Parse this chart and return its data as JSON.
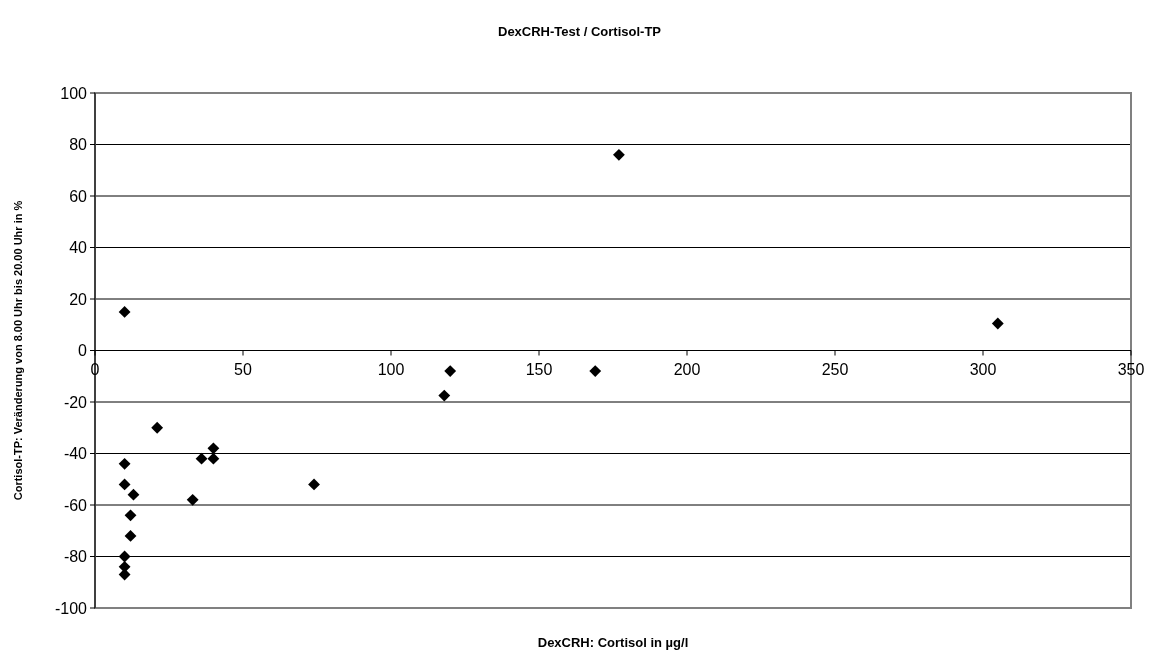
{
  "chart_data": {
    "type": "scatter",
    "title": "DexCRH-Test / Cortisol-TP",
    "xlabel": "DexCRH: Cortisol in µg/l",
    "ylabel": "Cortisol-TP: Veränderung von 8.00 Uhr bis 20.00 Uhr in %",
    "xlim": [
      0,
      350
    ],
    "xticks": [
      0,
      50,
      100,
      150,
      200,
      250,
      300,
      350
    ],
    "ylim": [
      -100,
      100
    ],
    "yticks": [
      -100,
      -80,
      -60,
      -40,
      -20,
      0,
      20,
      40,
      60,
      80,
      100
    ],
    "grid": "y",
    "marker": "diamond",
    "series": [
      {
        "color": "#000000",
        "x": [
          10,
          21,
          10,
          10,
          13,
          12,
          12,
          10,
          10,
          10,
          36,
          40,
          40,
          33,
          74,
          177,
          305,
          120,
          169,
          118
        ],
        "values": [
          15,
          -30,
          -44,
          -52,
          -56,
          -64,
          -72,
          -80,
          -84,
          -87,
          -42,
          -38,
          -42,
          -58,
          -52,
          76,
          10.5,
          -8,
          -8,
          -17.5
        ]
      }
    ]
  }
}
